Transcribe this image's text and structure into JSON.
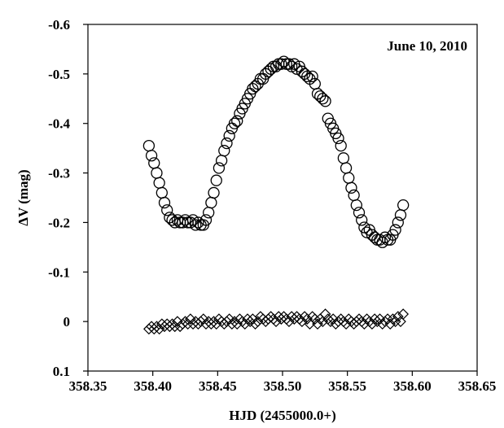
{
  "chart_data": {
    "type": "scatter",
    "title": "",
    "annotation": "June 10, 2010",
    "xlabel": "HJD (2455000.0+)",
    "ylabel": "ΔV (mag)",
    "xlim": [
      358.35,
      358.65
    ],
    "ylim": [
      -0.6,
      0.1
    ],
    "y_inverted": true,
    "grid": false,
    "x_ticks": [
      "358.35",
      "358.40",
      "358.45",
      "358.50",
      "358.55",
      "358.60",
      "358.65"
    ],
    "y_ticks": [
      "-0.6",
      "-0.5",
      "-0.4",
      "-0.3",
      "-0.2",
      "-0.1",
      "0",
      "0.1"
    ],
    "series": [
      {
        "marker": "circle",
        "x": [
          358.397,
          358.399,
          358.401,
          358.403,
          358.405,
          358.407,
          358.409,
          358.411,
          358.413,
          358.415,
          358.417,
          358.419,
          358.421,
          358.423,
          358.425,
          358.427,
          358.429,
          358.431,
          358.433,
          358.435,
          358.437,
          358.439,
          358.441,
          358.443,
          358.445,
          358.447,
          358.449,
          358.451,
          358.453,
          358.455,
          358.457,
          358.459,
          358.461,
          358.463,
          358.465,
          358.467,
          358.469,
          358.471,
          358.473,
          358.475,
          358.477,
          358.479,
          358.481,
          358.483,
          358.485,
          358.487,
          358.489,
          358.491,
          358.493,
          358.495,
          358.497,
          358.499,
          358.501,
          358.503,
          358.505,
          358.507,
          358.509,
          358.511,
          358.513,
          358.515,
          358.517,
          358.519,
          358.521,
          358.523,
          358.525,
          358.527,
          358.529,
          358.531,
          358.533,
          358.535,
          358.537,
          358.539,
          358.541,
          358.543,
          358.545,
          358.547,
          358.549,
          358.551,
          358.553,
          358.555,
          358.557,
          358.559,
          358.561,
          358.563,
          358.565,
          358.567,
          358.569,
          358.571,
          358.573,
          358.575,
          358.577,
          358.579,
          358.581,
          358.583,
          358.585,
          358.587,
          358.589,
          358.591,
          358.593
        ],
        "y": [
          -0.355,
          -0.335,
          -0.32,
          -0.3,
          -0.28,
          -0.26,
          -0.24,
          -0.225,
          -0.21,
          -0.205,
          -0.2,
          -0.205,
          -0.2,
          -0.2,
          -0.205,
          -0.2,
          -0.2,
          -0.205,
          -0.195,
          -0.2,
          -0.195,
          -0.195,
          -0.205,
          -0.22,
          -0.24,
          -0.26,
          -0.285,
          -0.31,
          -0.325,
          -0.345,
          -0.36,
          -0.375,
          -0.39,
          -0.4,
          -0.405,
          -0.42,
          -0.43,
          -0.44,
          -0.45,
          -0.46,
          -0.47,
          -0.475,
          -0.48,
          -0.49,
          -0.49,
          -0.5,
          -0.505,
          -0.51,
          -0.515,
          -0.515,
          -0.52,
          -0.52,
          -0.525,
          -0.52,
          -0.52,
          -0.515,
          -0.52,
          -0.51,
          -0.515,
          -0.505,
          -0.5,
          -0.495,
          -0.49,
          -0.495,
          -0.48,
          -0.46,
          -0.455,
          -0.45,
          -0.445,
          -0.41,
          -0.4,
          -0.39,
          -0.38,
          -0.37,
          -0.355,
          -0.33,
          -0.31,
          -0.29,
          -0.27,
          -0.255,
          -0.235,
          -0.22,
          -0.205,
          -0.19,
          -0.18,
          -0.185,
          -0.175,
          -0.17,
          -0.165,
          -0.165,
          -0.16,
          -0.17,
          -0.165,
          -0.165,
          -0.175,
          -0.185,
          -0.2,
          -0.215,
          -0.235
        ]
      },
      {
        "marker": "diamond",
        "x": [
          358.397,
          358.399,
          358.401,
          358.403,
          358.405,
          358.407,
          358.409,
          358.411,
          358.413,
          358.415,
          358.417,
          358.419,
          358.421,
          358.423,
          358.425,
          358.427,
          358.429,
          358.431,
          358.433,
          358.435,
          358.437,
          358.439,
          358.441,
          358.443,
          358.445,
          358.447,
          358.449,
          358.451,
          358.453,
          358.455,
          358.457,
          358.459,
          358.461,
          358.463,
          358.465,
          358.467,
          358.469,
          358.471,
          358.473,
          358.475,
          358.477,
          358.479,
          358.481,
          358.483,
          358.485,
          358.487,
          358.489,
          358.491,
          358.493,
          358.495,
          358.497,
          358.499,
          358.501,
          358.503,
          358.505,
          358.507,
          358.509,
          358.511,
          358.513,
          358.515,
          358.517,
          358.519,
          358.521,
          358.523,
          358.525,
          358.527,
          358.529,
          358.531,
          358.533,
          358.535,
          358.537,
          358.539,
          358.541,
          358.543,
          358.545,
          358.547,
          358.549,
          358.551,
          358.553,
          358.555,
          358.557,
          358.559,
          358.561,
          358.563,
          358.565,
          358.567,
          358.569,
          358.571,
          358.573,
          358.575,
          358.577,
          358.579,
          358.581,
          358.583,
          358.585,
          358.587,
          358.589,
          358.591,
          358.593
        ],
        "y": [
          0.015,
          0.01,
          0.015,
          0.01,
          0.015,
          0.005,
          0.01,
          0.005,
          0.01,
          0.005,
          0.01,
          0.0,
          0.01,
          0.005,
          0.0,
          0.005,
          -0.005,
          0.005,
          0.0,
          0.005,
          0.0,
          -0.005,
          0.005,
          0.0,
          0.005,
          0.0,
          0.005,
          -0.005,
          0.0,
          0.005,
          0.0,
          -0.005,
          0.005,
          0.0,
          0.005,
          -0.005,
          0.0,
          0.005,
          -0.005,
          0.0,
          -0.005,
          0.005,
          0.0,
          -0.01,
          -0.005,
          0.0,
          -0.005,
          -0.01,
          -0.005,
          0.0,
          -0.01,
          -0.005,
          -0.01,
          -0.005,
          0.0,
          -0.01,
          -0.005,
          -0.01,
          -0.005,
          0.0,
          -0.01,
          -0.005,
          0.005,
          -0.01,
          -0.005,
          0.005,
          -0.005,
          0.0,
          -0.015,
          -0.005,
          0.0,
          -0.005,
          0.005,
          0.0,
          -0.005,
          0.0,
          0.005,
          -0.005,
          0.0,
          0.005,
          0.0,
          -0.005,
          0.0,
          0.005,
          -0.005,
          0.0,
          0.005,
          -0.005,
          0.0,
          -0.005,
          0.005,
          0.0,
          -0.005,
          0.005,
          -0.005,
          0.0,
          -0.01,
          0.0,
          -0.015
        ]
      }
    ]
  }
}
